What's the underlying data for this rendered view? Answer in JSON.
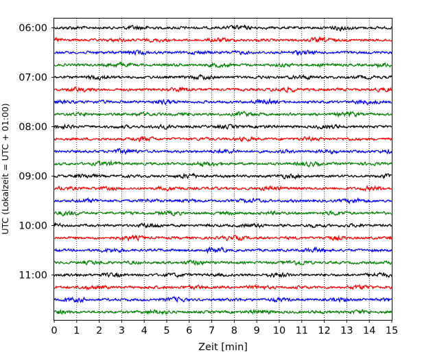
{
  "chart_data": {
    "type": "line",
    "subtype": "helicorder",
    "title": "",
    "xlabel": "Zeit  [min]",
    "ylabel": "UTC (Lokalzeit = UTC + 01:00)",
    "xlim": [
      0,
      15
    ],
    "x_ticks": [
      "0",
      "1",
      "2",
      "3",
      "4",
      "5",
      "6",
      "7",
      "8",
      "9",
      "10",
      "11",
      "12",
      "13",
      "14",
      "15"
    ],
    "y_tick_labels": [
      "06:00",
      "07:00",
      "08:00",
      "09:00",
      "10:00",
      "11:00"
    ],
    "trace_interval_minutes": 15,
    "trace_count": 24,
    "trace_colors": [
      "#000000",
      "#ff0000",
      "#0000ff",
      "#008000"
    ],
    "vertical_grid": "dotted",
    "traces": [
      {
        "start": "06:00",
        "color": "#000000"
      },
      {
        "start": "06:15",
        "color": "#ff0000"
      },
      {
        "start": "06:30",
        "color": "#0000ff"
      },
      {
        "start": "06:45",
        "color": "#008000"
      },
      {
        "start": "07:00",
        "color": "#000000"
      },
      {
        "start": "07:15",
        "color": "#ff0000"
      },
      {
        "start": "07:30",
        "color": "#0000ff"
      },
      {
        "start": "07:45",
        "color": "#008000"
      },
      {
        "start": "08:00",
        "color": "#000000"
      },
      {
        "start": "08:15",
        "color": "#ff0000"
      },
      {
        "start": "08:30",
        "color": "#0000ff"
      },
      {
        "start": "08:45",
        "color": "#008000"
      },
      {
        "start": "09:00",
        "color": "#000000"
      },
      {
        "start": "09:15",
        "color": "#ff0000"
      },
      {
        "start": "09:30",
        "color": "#0000ff"
      },
      {
        "start": "09:45",
        "color": "#008000"
      },
      {
        "start": "10:00",
        "color": "#000000"
      },
      {
        "start": "10:15",
        "color": "#ff0000"
      },
      {
        "start": "10:30",
        "color": "#0000ff"
      },
      {
        "start": "10:45",
        "color": "#008000"
      },
      {
        "start": "11:00",
        "color": "#000000"
      },
      {
        "start": "11:15",
        "color": "#ff0000"
      },
      {
        "start": "11:30",
        "color": "#0000ff"
      },
      {
        "start": "11:45",
        "color": "#008000"
      }
    ]
  }
}
